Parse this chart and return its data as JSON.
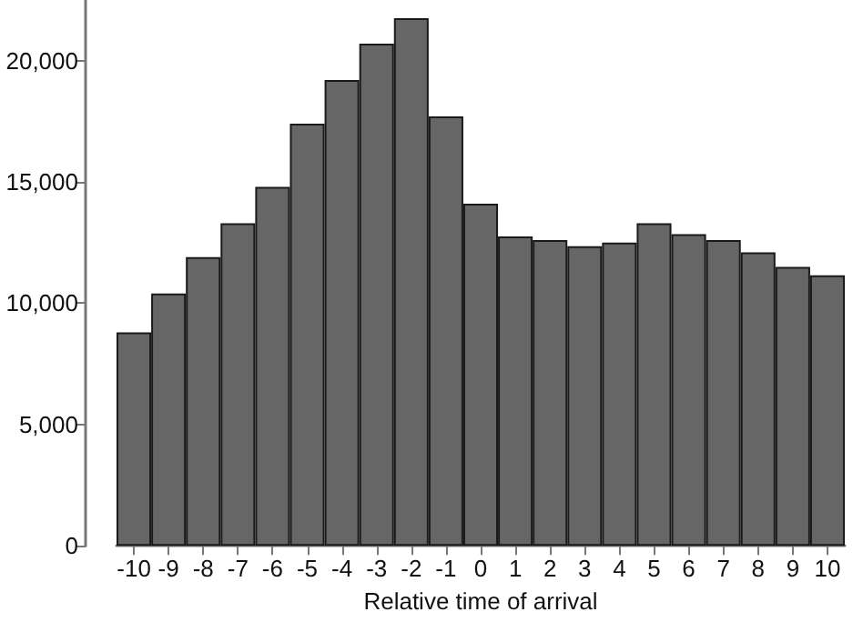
{
  "chart_data": {
    "type": "bar",
    "xlabel": "Relative time of arrival",
    "categories": [
      "-10",
      "-9",
      "-8",
      "-7",
      "-6",
      "-5",
      "-4",
      "-3",
      "-2",
      "-1",
      "0",
      "1",
      "2",
      "3",
      "4",
      "5",
      "6",
      "7",
      "8",
      "9",
      "10"
    ],
    "values": [
      8800,
      10400,
      11900,
      13300,
      14800,
      17400,
      19200,
      20700,
      21750,
      17700,
      14100,
      12750,
      12600,
      12350,
      12500,
      13300,
      12850,
      12600,
      12100,
      11500,
      11150
    ],
    "color": "#666666",
    "ylim": [
      0,
      22500
    ],
    "yticks": [
      {
        "value": 0,
        "label": "0"
      },
      {
        "value": 5000,
        "label": "5,000"
      },
      {
        "value": 10000,
        "label": "10,000"
      },
      {
        "value": 15000,
        "label": "15,000"
      },
      {
        "value": 20000,
        "label": "20,000"
      }
    ]
  }
}
